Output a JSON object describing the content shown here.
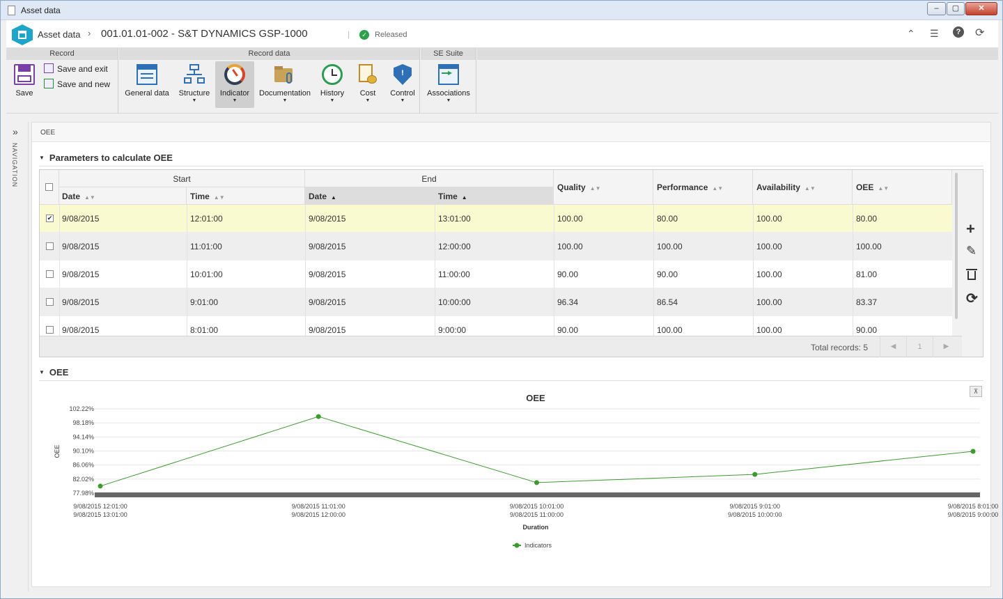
{
  "window": {
    "title": "Asset data",
    "min": "‒",
    "max": "▢",
    "close": "✕"
  },
  "header": {
    "breadcrumb": "Asset data",
    "separator": "›",
    "title": "001.01.01-002 - S&T DYNAMICS GSP-1000",
    "divider": "|",
    "status": "Released",
    "icons": [
      "collapse-up-icon",
      "list-icon",
      "help-icon",
      "refresh-icon"
    ]
  },
  "ribbon": {
    "groups": [
      "Record",
      "Record data",
      "SE Suite"
    ],
    "save": "Save",
    "save_exit": "Save and exit",
    "save_new": "Save and new",
    "buttons": [
      "General data",
      "Structure",
      "Indicator",
      "Documentation",
      "History",
      "Cost",
      "Control",
      "Associations"
    ]
  },
  "nav": {
    "label": "NAVIGATION",
    "chevron": "»"
  },
  "panel": {
    "tab": "OEE"
  },
  "params": {
    "section": "Parameters to calculate OEE",
    "headers": {
      "start": "Start",
      "end": "End",
      "date": "Date",
      "time": "Time",
      "quality": "Quality",
      "performance": "Performance",
      "availability": "Availability",
      "oee": "OEE"
    },
    "rows": [
      {
        "checked": true,
        "sdate": "9/08/2015",
        "stime": "12:01:00",
        "edate": "9/08/2015",
        "etime": "13:01:00",
        "quality": "100.00",
        "performance": "80.00",
        "availability": "100.00",
        "oee": "80.00"
      },
      {
        "checked": false,
        "sdate": "9/08/2015",
        "stime": "11:01:00",
        "edate": "9/08/2015",
        "etime": "12:00:00",
        "quality": "100.00",
        "performance": "100.00",
        "availability": "100.00",
        "oee": "100.00"
      },
      {
        "checked": false,
        "sdate": "9/08/2015",
        "stime": "10:01:00",
        "edate": "9/08/2015",
        "etime": "11:00:00",
        "quality": "90.00",
        "performance": "90.00",
        "availability": "100.00",
        "oee": "81.00"
      },
      {
        "checked": false,
        "sdate": "9/08/2015",
        "stime": "9:01:00",
        "edate": "9/08/2015",
        "etime": "10:00:00",
        "quality": "96.34",
        "performance": "86.54",
        "availability": "100.00",
        "oee": "83.37"
      },
      {
        "checked": false,
        "sdate": "9/08/2015",
        "stime": "8:01:00",
        "edate": "9/08/2015",
        "etime": "9:00:00",
        "quality": "90.00",
        "performance": "100.00",
        "availability": "100.00",
        "oee": "90.00"
      }
    ],
    "total": "Total records: 5",
    "page": "1",
    "prev": "◀",
    "next": "▶",
    "actions": [
      "add-icon",
      "edit-icon",
      "delete-icon",
      "refresh-icon"
    ]
  },
  "oee_section": {
    "section": "OEE",
    "pin": "⊼"
  },
  "chart_data": {
    "type": "line",
    "title": "OEE",
    "xlabel": "Duration",
    "ylabel": "OEE",
    "categories": [
      [
        "9/08/2015 12:01:00",
        "9/08/2015 13:01:00"
      ],
      [
        "9/08/2015 11:01:00",
        "9/08/2015 12:00:00"
      ],
      [
        "9/08/2015 10:01:00",
        "9/08/2015 11:00:00"
      ],
      [
        "9/08/2015 9:01:00",
        "9/08/2015 10:00:00"
      ],
      [
        "9/08/2015 8:01:00",
        "9/08/2015 9:00:00"
      ]
    ],
    "yticks": [
      "77.98%",
      "82.02%",
      "86.06%",
      "90.10%",
      "94.14%",
      "98.18%",
      "102.22%"
    ],
    "ylim": [
      77.98,
      102.22
    ],
    "series": [
      {
        "name": "Indicators",
        "values": [
          80.0,
          100.0,
          81.0,
          83.37,
          90.0
        ],
        "color": "#3d9a2f"
      }
    ],
    "legend": "bottom-center"
  }
}
